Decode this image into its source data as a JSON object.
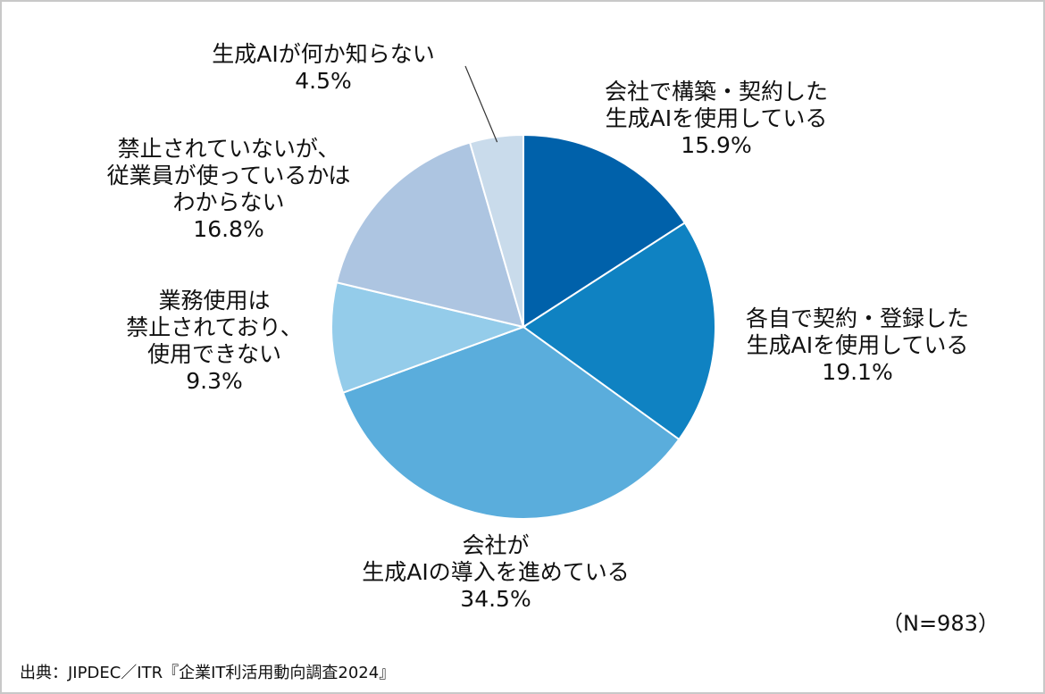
{
  "chart_data": {
    "type": "pie",
    "start_angle_deg": 0,
    "direction": "clockwise",
    "slices": [
      {
        "lines": [
          "会社で構築・契約した",
          "生成AIを使用している"
        ],
        "value": 15.9,
        "value_label": "15.9%",
        "color": "#0061aa"
      },
      {
        "lines": [
          "各自で契約・登録した",
          "生成AIを使用している"
        ],
        "value": 19.1,
        "value_label": "19.1%",
        "color": "#0f82c2"
      },
      {
        "lines": [
          "会社が",
          "生成AIの導入を進めている"
        ],
        "value": 34.5,
        "value_label": "34.5%",
        "color": "#5aaddc"
      },
      {
        "lines": [
          "業務使用は",
          "禁止されており、",
          "使用できない"
        ],
        "value": 9.3,
        "value_label": "9.3%",
        "color": "#94ccea"
      },
      {
        "lines": [
          "禁止されていないが、",
          "従業員が使っているかは",
          "わからない"
        ],
        "value": 16.8,
        "value_label": "16.8%",
        "color": "#adc5e1"
      },
      {
        "lines": [
          "生成AIが何か知らない"
        ],
        "value": 4.5,
        "value_label": "4.5%",
        "color": "#c9dbeb"
      }
    ],
    "sample_size": "（N=983）"
  },
  "source": "出典：JIPDEC／ITR『企業IT利活用動向調査2024』"
}
